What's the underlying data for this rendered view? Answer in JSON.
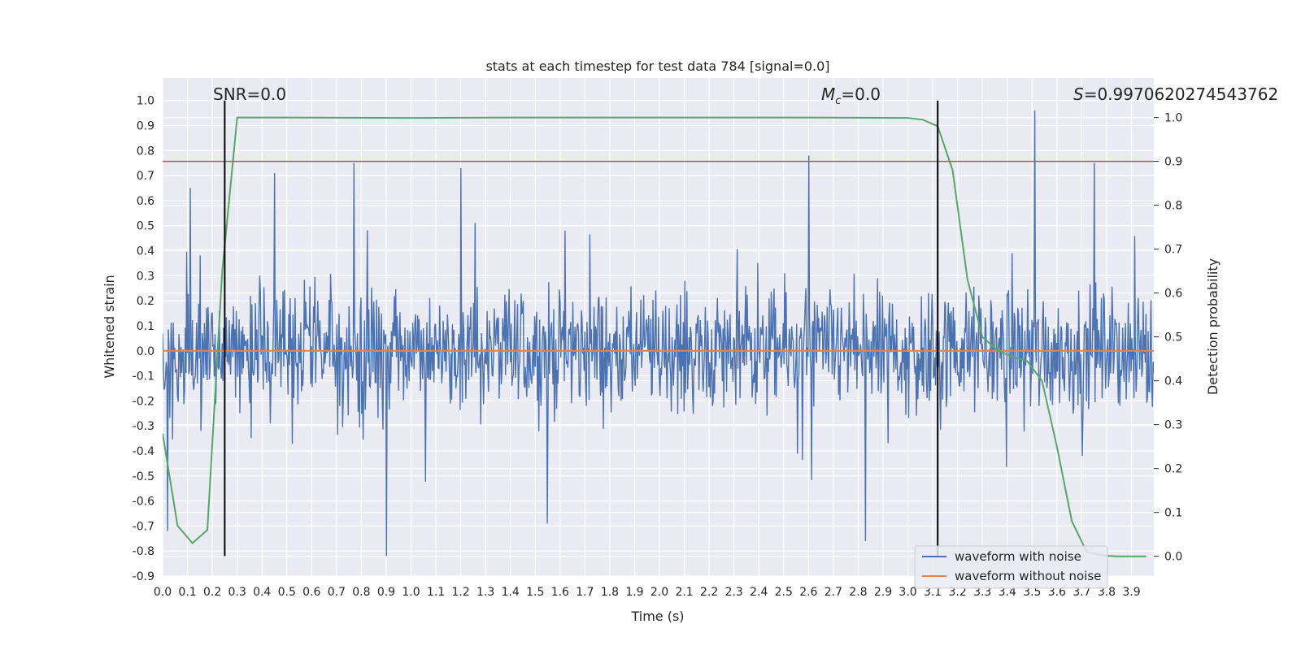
{
  "chart_data": {
    "type": "line",
    "title": "stats at each timestep for test data 784 [signal=0.0]",
    "xlabel": "Time (s)",
    "ylabel": "Whitened strain",
    "y2label": "Detection probability",
    "xlim": [
      0.0,
      3.99
    ],
    "ylim": [
      -0.9,
      1.09
    ],
    "y2lim": [
      -0.045,
      1.09
    ],
    "x_ticks": [
      "0.0",
      "0.1",
      "0.2",
      "0.3",
      "0.4",
      "0.5",
      "0.6",
      "0.7",
      "0.8",
      "0.9",
      "1.0",
      "1.1",
      "1.2",
      "1.3",
      "1.4",
      "1.5",
      "1.6",
      "1.7",
      "1.8",
      "1.9",
      "2.0",
      "2.1",
      "2.2",
      "2.3",
      "2.4",
      "2.5",
      "2.6",
      "2.7",
      "2.8",
      "2.9",
      "3.0",
      "3.1",
      "3.2",
      "3.3",
      "3.4",
      "3.5",
      "3.6",
      "3.7",
      "3.8",
      "3.9"
    ],
    "y_ticks": [
      "-0.9",
      "-0.8",
      "-0.7",
      "-0.6",
      "-0.5",
      "-0.4",
      "-0.3",
      "-0.2",
      "-0.1",
      "0.0",
      "0.1",
      "0.2",
      "0.3",
      "0.4",
      "0.5",
      "0.6",
      "0.7",
      "0.8",
      "0.9",
      "1.0"
    ],
    "y2_ticks": [
      "0.0",
      "0.1",
      "0.2",
      "0.3",
      "0.4",
      "0.5",
      "0.6",
      "0.7",
      "0.8",
      "0.9",
      "1.0"
    ],
    "grid": true,
    "background": "#EAEAF2",
    "legend_position": "bottom-right",
    "annotations": {
      "snr": "SNR=0.0",
      "mc_symbol": "M",
      "mc_sub": "c",
      "mc_value": "=0.0",
      "s_symbol": "S",
      "s_value": "=0.9970620274543762"
    },
    "series": [
      {
        "name": "waveform with noise",
        "color": "#4C72B0",
        "style": "dense noise, envelope approx ±0.3, spikes up to 0.96 and down to -0.82",
        "peaks": [
          {
            "x": 0.11,
            "y": 0.65
          },
          {
            "x": 0.45,
            "y": 0.71
          },
          {
            "x": 0.77,
            "y": 0.75
          },
          {
            "x": 1.2,
            "y": 0.73
          },
          {
            "x": 2.6,
            "y": 0.78
          },
          {
            "x": 3.51,
            "y": 0.96
          },
          {
            "x": 3.75,
            "y": 0.75
          },
          {
            "x": 0.9,
            "y": -0.82
          },
          {
            "x": 2.83,
            "y": -0.76
          },
          {
            "x": 0.02,
            "y": -0.72
          },
          {
            "x": 1.55,
            "y": -0.69
          }
        ]
      },
      {
        "name": "waveform without noise",
        "color": "#DD8452",
        "x": [
          0.0,
          3.99
        ],
        "y": [
          0.0,
          0.0
        ]
      },
      {
        "name": "",
        "axis": "right",
        "color": "#55A868",
        "x": [
          0.0,
          0.06,
          0.12,
          0.18,
          0.24,
          0.3,
          0.36,
          0.5,
          1.0,
          1.5,
          2.0,
          2.5,
          3.0,
          3.06,
          3.12,
          3.18,
          3.24,
          3.3,
          3.36,
          3.42,
          3.48,
          3.54,
          3.6,
          3.66,
          3.72,
          3.78,
          3.84,
          3.96
        ],
        "y": [
          0.28,
          0.07,
          0.03,
          0.06,
          0.65,
          1.0,
          1.0,
          1.0,
          0.999,
          1.0,
          1.0,
          1.0,
          0.999,
          0.995,
          0.98,
          0.88,
          0.63,
          0.5,
          0.47,
          0.455,
          0.445,
          0.4,
          0.25,
          0.08,
          0.01,
          0.002,
          0.0,
          0.0
        ]
      },
      {
        "name": "",
        "axis": "right",
        "color": "#C44E52",
        "x": [
          0.0,
          3.99
        ],
        "y": [
          0.9,
          0.9
        ]
      }
    ],
    "vertical_markers": [
      {
        "x": 0.25,
        "y_from": -0.82,
        "y_to": 1.0,
        "color": "#000000"
      },
      {
        "x": 3.12,
        "y_from": -0.82,
        "y_to": 1.0,
        "color": "#000000"
      }
    ]
  }
}
